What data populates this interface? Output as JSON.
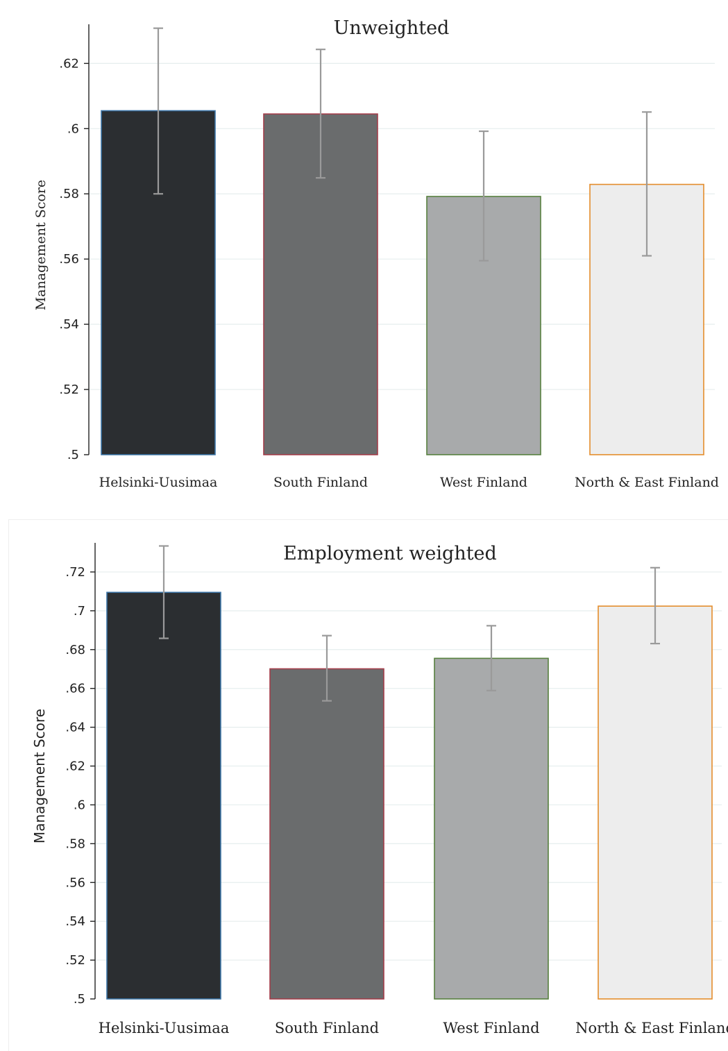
{
  "chart_data": [
    {
      "type": "bar",
      "title": "Unweighted",
      "ylabel": "Management Score",
      "categories": [
        "Helsinki-Uusimaa",
        "South Finland",
        "West Finland",
        "North & East Finland"
      ],
      "values": [
        0.6055,
        0.6045,
        0.5792,
        0.5829
      ],
      "error_low": [
        0.58,
        0.5849,
        0.5595,
        0.561
      ],
      "error_high": [
        0.6308,
        0.6243,
        0.5992,
        0.6051
      ],
      "ylim": [
        0.5,
        0.632
      ],
      "yticks": [
        0.5,
        0.52,
        0.54,
        0.56,
        0.58,
        0.6,
        0.62
      ],
      "ytick_labels": [
        ".5",
        ".52",
        ".54",
        ".56",
        ".58",
        ".6",
        ".62"
      ],
      "grid": true,
      "bar_fills": [
        "#2b2e31",
        "#6a6c6d",
        "#a8aaab",
        "#ededed"
      ],
      "bar_outlines": [
        "#3b74a6",
        "#a33d4a",
        "#57803f",
        "#e48d2c"
      ]
    },
    {
      "type": "bar",
      "title": "Employment weighted",
      "ylabel": "Management Score",
      "categories": [
        "Helsinki-Uusimaa",
        "South Finland",
        "West Finland",
        "North & East Finland"
      ],
      "values": [
        0.7095,
        0.6701,
        0.6755,
        0.7024
      ],
      "error_low": [
        0.6858,
        0.6536,
        0.6589,
        0.6831
      ],
      "error_high": [
        0.7334,
        0.6872,
        0.6923,
        0.7222
      ],
      "ylim": [
        0.5,
        0.735
      ],
      "yticks": [
        0.5,
        0.52,
        0.54,
        0.56,
        0.58,
        0.6,
        0.62,
        0.64,
        0.66,
        0.68,
        0.7,
        0.72
      ],
      "ytick_labels": [
        ".5",
        ".52",
        ".54",
        ".56",
        ".58",
        ".6",
        ".62",
        ".64",
        ".66",
        ".68",
        ".7",
        ".72"
      ],
      "grid": true,
      "bar_fills": [
        "#2b2e31",
        "#6a6c6d",
        "#a8aaab",
        "#ededed"
      ],
      "bar_outlines": [
        "#3b74a6",
        "#a33d4a",
        "#57803f",
        "#e48d2c"
      ]
    }
  ]
}
